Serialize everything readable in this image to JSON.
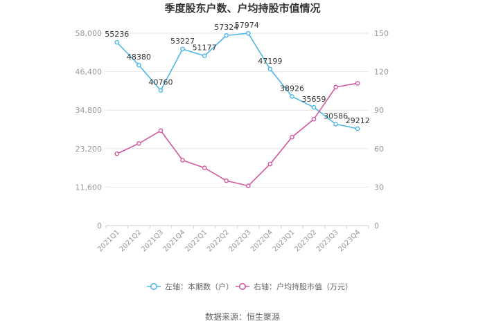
{
  "chart_data": {
    "type": "line",
    "title": "季度股东户数、户均持股市值情况",
    "categories": [
      "2021Q1",
      "2021Q2",
      "2021Q3",
      "2021Q4",
      "2022Q1",
      "2022Q2",
      "2022Q3",
      "2022Q4",
      "2023Q1",
      "2023Q2",
      "2023Q3",
      "2023Q4"
    ],
    "y_left": {
      "ticks": [
        "0",
        "11,600",
        "23,200",
        "34,800",
        "46,400",
        "58,000"
      ],
      "ylim": [
        0,
        58000
      ]
    },
    "y_right": {
      "ticks": [
        "0",
        "30",
        "60",
        "90",
        "120",
        "150"
      ],
      "ylim": [
        0,
        150
      ]
    },
    "series": [
      {
        "name": "左轴：本期数（户）",
        "axis": "left",
        "color": "#4db6e8",
        "values": [
          55236,
          48380,
          40760,
          53227,
          51177,
          57324,
          57974,
          47199,
          38926,
          35659,
          30586,
          29212
        ],
        "labels": [
          "55236",
          "48380",
          "40760",
          "53227",
          "51177",
          "57324",
          "57974",
          "47199",
          "38926",
          "35659",
          "30586",
          "29212"
        ]
      },
      {
        "name": "右轴：户均持股市值（万元）",
        "axis": "right",
        "color": "#d4589e",
        "values": [
          56,
          64,
          74,
          51,
          45,
          35,
          31,
          48,
          69,
          83,
          108,
          111
        ]
      }
    ],
    "grid": true,
    "legend": "bottom"
  },
  "source": "数据来源：恒生聚源"
}
